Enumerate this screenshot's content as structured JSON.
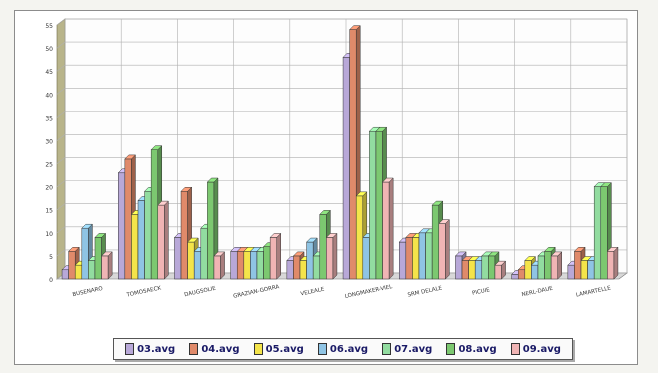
{
  "chart_data": {
    "type": "bar",
    "title": "",
    "xlabel": "",
    "ylabel": "",
    "ylim": [
      0,
      55
    ],
    "yticks": [
      0,
      5,
      10,
      15,
      20,
      25,
      30,
      35,
      40,
      45,
      50,
      55
    ],
    "grid": true,
    "legend_position": "bottom",
    "categories": [
      "BUSENARO",
      "TOMOSAECK",
      "DAUGSOLIE",
      "GRAZIAN-GORRA",
      "VELEALE",
      "LONGMAKER-VIEL",
      "SRM DELALE",
      "PICUIE",
      "NERL-DAUE",
      "LAMARTELLE"
    ],
    "series": [
      {
        "name": "03.avg",
        "color": "#b8a8d8",
        "values": [
          2,
          23,
          9,
          6,
          4,
          48,
          8,
          5,
          1,
          3
        ]
      },
      {
        "name": "04.avg",
        "color": "#e08a6a",
        "values": [
          6,
          26,
          19,
          6,
          5,
          54,
          9,
          4,
          2,
          6
        ]
      },
      {
        "name": "05.avg",
        "color": "#f4e44a",
        "values": [
          3,
          14,
          8,
          6,
          4,
          18,
          9,
          4,
          4,
          4
        ]
      },
      {
        "name": "06.avg",
        "color": "#8fc4e4",
        "values": [
          11,
          17,
          6,
          6,
          8,
          9,
          10,
          4,
          3,
          4
        ]
      },
      {
        "name": "07.avg",
        "color": "#92dca0",
        "values": [
          4,
          19,
          11,
          6,
          5,
          32,
          10,
          5,
          5,
          20
        ]
      },
      {
        "name": "08.avg",
        "color": "#7cc870",
        "values": [
          9,
          28,
          21,
          7,
          14,
          32,
          16,
          5,
          6,
          20
        ]
      },
      {
        "name": "09.avg",
        "color": "#f0b4b4",
        "values": [
          5,
          16,
          5,
          9,
          9,
          21,
          12,
          3,
          5,
          6
        ]
      }
    ]
  }
}
